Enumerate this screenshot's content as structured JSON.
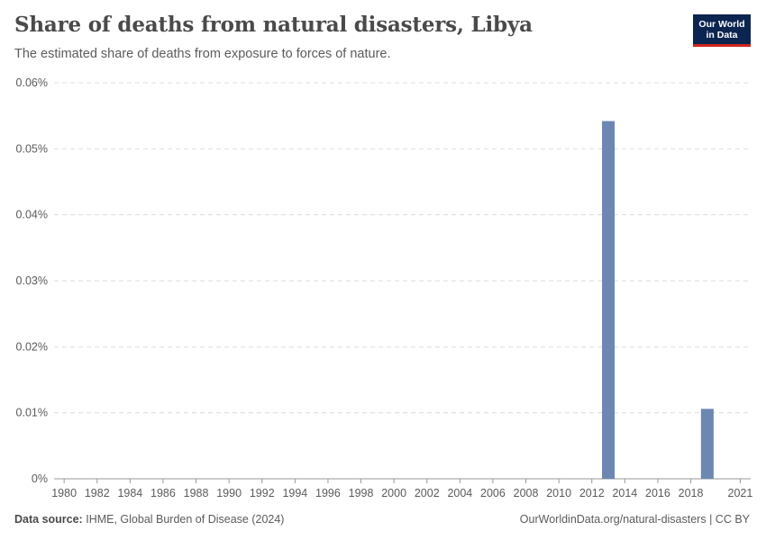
{
  "header": {
    "title": "Share of deaths from natural disasters, Libya",
    "subtitle": "The estimated share of deaths from exposure to forces of nature.",
    "logo_line1": "Our World",
    "logo_line2": "in Data"
  },
  "footer": {
    "source_label": "Data source:",
    "source_text": "IHME, Global Burden of Disease (2024)",
    "credit": "OurWorldinData.org/natural-disasters | CC BY"
  },
  "colors": {
    "bar": "#6d87b3",
    "grid": "#dddddd",
    "axis": "#999999"
  },
  "chart_data": {
    "type": "bar",
    "title": "Share of deaths from natural disasters, Libya",
    "ylabel": "",
    "xlabel": "",
    "ylim": [
      0,
      0.06
    ],
    "xlim": [
      1980,
      2021
    ],
    "y_ticks": [
      0,
      0.01,
      0.02,
      0.03,
      0.04,
      0.05,
      0.06
    ],
    "y_tick_labels": [
      "0%",
      "0.01%",
      "0.02%",
      "0.03%",
      "0.04%",
      "0.05%",
      "0.06%"
    ],
    "x_ticks": [
      1980,
      1982,
      1984,
      1986,
      1988,
      1990,
      1992,
      1994,
      1996,
      1998,
      2000,
      2002,
      2004,
      2006,
      2008,
      2010,
      2012,
      2014,
      2016,
      2018,
      2021
    ],
    "grid": true,
    "unit": "%",
    "series": [
      {
        "name": "Libya",
        "points": [
          {
            "year": 2013,
            "value": 0.0542
          },
          {
            "year": 2019,
            "value": 0.0106
          }
        ]
      }
    ]
  }
}
